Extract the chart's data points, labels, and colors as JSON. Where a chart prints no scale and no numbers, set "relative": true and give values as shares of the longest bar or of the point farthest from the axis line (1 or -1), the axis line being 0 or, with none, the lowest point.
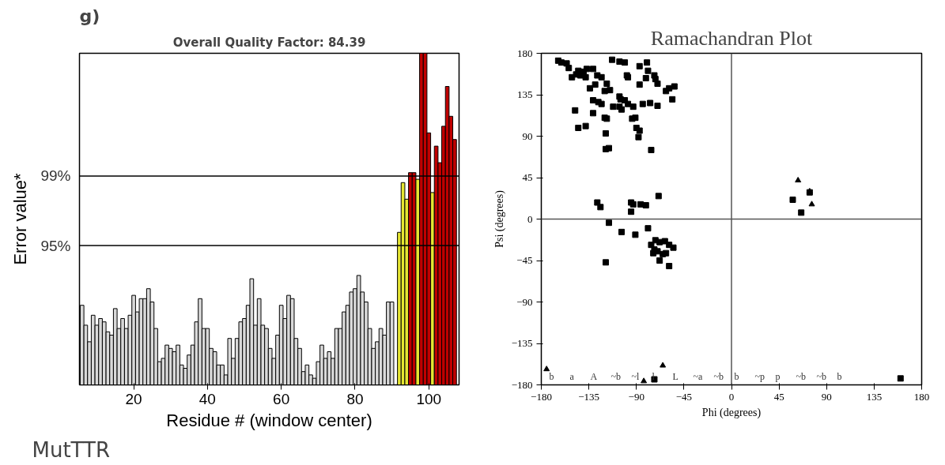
{
  "chart_data": [
    {
      "type": "bar",
      "title": "Overall Quality Factor: 84.39",
      "xlabel": "Residue # (window center)",
      "ylabel": "Error value*",
      "annotations": [
        "g)",
        "MutTTR",
        "95%",
        "99%"
      ],
      "relative": true,
      "x": [
        6,
        7,
        8,
        9,
        10,
        11,
        12,
        13,
        14,
        15,
        16,
        17,
        18,
        19,
        20,
        21,
        22,
        23,
        24,
        25,
        26,
        27,
        28,
        29,
        30,
        31,
        32,
        33,
        34,
        35,
        36,
        37,
        38,
        39,
        40,
        41,
        42,
        43,
        44,
        45,
        46,
        47,
        48,
        49,
        50,
        51,
        52,
        53,
        54,
        55,
        56,
        57,
        58,
        59,
        60,
        61,
        62,
        63,
        64,
        65,
        66,
        67,
        68,
        69,
        70,
        71,
        72,
        73,
        74,
        75,
        76,
        77,
        78,
        79,
        80,
        81,
        82,
        83,
        84,
        85,
        86,
        87,
        88,
        89,
        90,
        91,
        92,
        93,
        94,
        95,
        96,
        97,
        98,
        99,
        100,
        101,
        102,
        103,
        104,
        105,
        106,
        107
      ],
      "values": [
        0.24,
        0.18,
        0.13,
        0.21,
        0.18,
        0.2,
        0.19,
        0.16,
        0.15,
        0.23,
        0.17,
        0.2,
        0.17,
        0.21,
        0.27,
        0.22,
        0.26,
        0.26,
        0.29,
        0.25,
        0.17,
        0.07,
        0.08,
        0.12,
        0.11,
        0.1,
        0.12,
        0.06,
        0.05,
        0.09,
        0.12,
        0.19,
        0.26,
        0.17,
        0.17,
        0.11,
        0.1,
        0.06,
        0.06,
        0.03,
        0.14,
        0.08,
        0.14,
        0.19,
        0.2,
        0.24,
        0.32,
        0.18,
        0.26,
        0.18,
        0.17,
        0.11,
        0.08,
        0.15,
        0.24,
        0.2,
        0.27,
        0.26,
        0.14,
        0.11,
        0.04,
        0.06,
        0.03,
        0.02,
        0.07,
        0.12,
        0.08,
        0.1,
        0.08,
        0.17,
        0.17,
        0.22,
        0.24,
        0.28,
        0.29,
        0.33,
        0.28,
        0.25,
        0.17,
        0.11,
        0.13,
        0.17,
        0.15,
        0.25,
        0.25,
        null,
        0.46,
        0.61,
        0.56,
        0.64,
        0.64,
        0.62,
        1,
        1,
        0.76,
        0.58,
        0.72,
        0.67,
        0.78,
        0.9,
        0.81,
        0.74
      ],
      "colors": [
        "#d9d9d9",
        "#d9d9d9",
        "#d9d9d9",
        "#d9d9d9",
        "#d9d9d9",
        "#d9d9d9",
        "#d9d9d9",
        "#d9d9d9",
        "#d9d9d9",
        "#d9d9d9",
        "#d9d9d9",
        "#d9d9d9",
        "#d9d9d9",
        "#d9d9d9",
        "#d9d9d9",
        "#d9d9d9",
        "#d9d9d9",
        "#d9d9d9",
        "#d9d9d9",
        "#d9d9d9",
        "#d9d9d9",
        "#d9d9d9",
        "#d9d9d9",
        "#d9d9d9",
        "#d9d9d9",
        "#d9d9d9",
        "#d9d9d9",
        "#d9d9d9",
        "#d9d9d9",
        "#d9d9d9",
        "#d9d9d9",
        "#d9d9d9",
        "#d9d9d9",
        "#d9d9d9",
        "#d9d9d9",
        "#d9d9d9",
        "#d9d9d9",
        "#d9d9d9",
        "#d9d9d9",
        "#d9d9d9",
        "#d9d9d9",
        "#d9d9d9",
        "#d9d9d9",
        "#d9d9d9",
        "#d9d9d9",
        "#d9d9d9",
        "#d9d9d9",
        "#d9d9d9",
        "#d9d9d9",
        "#d9d9d9",
        "#d9d9d9",
        "#d9d9d9",
        "#d9d9d9",
        "#d9d9d9",
        "#d9d9d9",
        "#d9d9d9",
        "#d9d9d9",
        "#d9d9d9",
        "#d9d9d9",
        "#d9d9d9",
        "#d9d9d9",
        "#d9d9d9",
        "#d9d9d9",
        "#d9d9d9",
        "#d9d9d9",
        "#d9d9d9",
        "#d9d9d9",
        "#d9d9d9",
        "#d9d9d9",
        "#d9d9d9",
        "#d9d9d9",
        "#d9d9d9",
        "#d9d9d9",
        "#d9d9d9",
        "#d9d9d9",
        "#d9d9d9",
        "#d9d9d9",
        "#d9d9d9",
        "#d9d9d9",
        "#d9d9d9",
        "#d9d9d9",
        "#d9d9d9",
        "#d9d9d9",
        "#d9d9d9",
        "#d9d9d9",
        "#d9d9d9",
        "#e6e632",
        "#e6e632",
        "#e6e632",
        "#c00000",
        "#c00000",
        "#e6e632",
        "#c00000",
        "#c00000",
        "#c00000",
        "#e6e632",
        "#c00000",
        "#c00000",
        "#c00000",
        "#c00000",
        "#c00000",
        "#c00000"
      ],
      "xlim": [
        5.3,
        108.2
      ],
      "xticks": [
        20,
        40,
        60,
        80,
        100
      ],
      "ref_lines": [
        {
          "axis": "y",
          "value": 0.42
        },
        {
          "axis": "y",
          "value": 0.63
        }
      ]
    },
    {
      "type": "scatter",
      "title": "Ramachandran Plot",
      "xlabel": "Phi (degrees)",
      "ylabel": "Psi (degrees)",
      "series": [
        {
          "color": "#000000",
          "marker": "square",
          "x": [
            -164,
            -161,
            -156,
            -154,
            -145,
            -140,
            -137,
            -131,
            -151,
            -147,
            -143,
            -138,
            -127,
            -123,
            -113,
            -106,
            -101,
            -99,
            -98,
            -87,
            -80,
            -79,
            -73,
            -72,
            -134,
            -129,
            -118,
            -120,
            -115,
            -131,
            -126,
            -123,
            -112,
            -106,
            -105,
            -101,
            -98,
            -93,
            -84,
            -77,
            -70,
            -62,
            -59,
            -56,
            -54,
            -87,
            -81,
            -70,
            -106,
            -104,
            -120,
            -131,
            -148,
            -118,
            -145,
            -138,
            -119,
            -94,
            -91,
            -90,
            -87,
            -88,
            -119,
            -116,
            -76,
            -127,
            -124,
            -116,
            -104,
            -95,
            -93,
            -86,
            -81,
            -95,
            -69,
            -91,
            -79,
            -72,
            -68,
            -63,
            -59,
            -55,
            -76,
            -73,
            -70,
            -74,
            -65,
            -68,
            -59,
            -119,
            -62,
            58,
            66,
            74,
            -73,
            160
          ],
          "values": [
            172,
            170,
            169,
            164,
            161,
            160,
            163,
            163,
            154,
            157,
            156,
            154,
            156,
            154,
            173,
            171,
            170,
            156,
            154,
            166,
            170,
            161,
            156,
            152,
            142,
            146,
            147,
            139,
            140,
            129,
            127,
            125,
            122,
            133,
            130,
            129,
            125,
            122,
            125,
            126,
            123,
            139,
            142,
            130,
            144,
            146,
            153,
            147,
            122,
            119,
            110,
            115,
            118,
            109,
            99,
            101,
            93,
            109,
            110,
            99,
            96,
            89,
            76,
            77,
            75,
            18,
            13,
            -4,
            -14,
            18,
            16,
            16,
            15,
            8,
            25,
            -17,
            -10,
            -23,
            -25,
            -24,
            -28,
            -31,
            -28,
            -33,
            -35,
            -37,
            -38,
            -45,
            -51,
            -47,
            -37,
            21,
            7,
            29,
            -174,
            -173
          ]
        },
        {
          "color": "#000000",
          "marker": "triangle",
          "x": [
            63,
            74,
            76,
            -175,
            -65,
            -83
          ],
          "values": [
            42,
            30,
            16,
            -163,
            -159,
            -176
          ]
        }
      ],
      "annotations": [
        "b",
        "a",
        "A",
        "~b",
        "~l",
        "l",
        "L",
        "~a",
        "~b",
        "b",
        "~p",
        "p",
        "~b",
        "~b",
        "b"
      ],
      "ref_lines": [
        {
          "axis": "x",
          "value": 0
        },
        {
          "axis": "y",
          "value": 0
        }
      ],
      "xlim": [
        -180,
        180
      ],
      "xticks": [
        -180,
        -135,
        -90,
        -45,
        0,
        45,
        90,
        135,
        180
      ],
      "ylim": [
        -180,
        180
      ],
      "yticks": [
        -180,
        -135,
        -90,
        -45,
        0,
        45,
        90,
        135,
        180
      ],
      "grid": false
    }
  ]
}
